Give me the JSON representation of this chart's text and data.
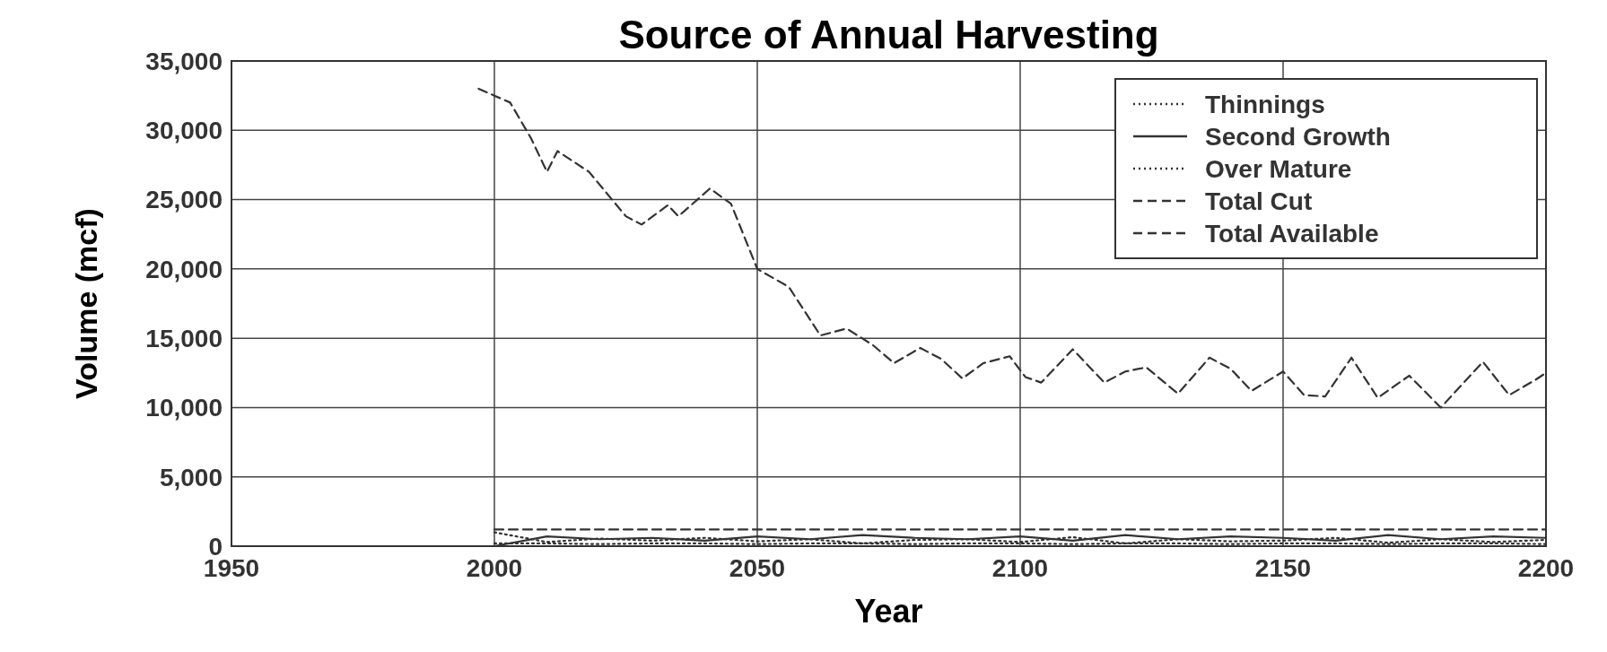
{
  "chart_data": {
    "type": "line",
    "title": "Source of Annual Harvesting",
    "xlabel": "Year",
    "ylabel": "Volume (mcf)",
    "xlim": [
      1950,
      2200
    ],
    "xticks": [
      1950,
      2000,
      2050,
      2100,
      2150,
      2200
    ],
    "ylim": [
      0,
      35000
    ],
    "yticks": [
      0,
      {
        "value": 5000,
        "label": "5,000"
      },
      {
        "value": 10000,
        "label": "10,000"
      },
      {
        "value": 15000,
        "label": "15,000"
      },
      {
        "value": 20000,
        "label": "20,000"
      },
      {
        "value": 25000,
        "label": "25,000"
      },
      {
        "value": 30000,
        "label": "30,000"
      },
      {
        "value": 35000,
        "label": "35,000"
      }
    ],
    "grid": true,
    "legend": "top right",
    "marker": "none",
    "x": [
      2000,
      2010,
      2020,
      2030,
      2040,
      2050,
      2060,
      2070,
      2080,
      2090,
      2100,
      2110,
      2120,
      2130,
      2140,
      2150,
      2160,
      2170,
      2180,
      2190,
      2200
    ],
    "series": [
      {
        "name": "Thinnings",
        "color": "#333333",
        "line_style": "dotted",
        "values": [
          200,
          200,
          150,
          200,
          200,
          150,
          200,
          200,
          150,
          200,
          200,
          150,
          200,
          200,
          150,
          200,
          200,
          150,
          200,
          200,
          150
        ]
      },
      {
        "name": "Second Growth",
        "color": "#333333",
        "line_style": "solid",
        "values": [
          0,
          700,
          500,
          600,
          400,
          700,
          500,
          800,
          600,
          500,
          700,
          400,
          800,
          500,
          700,
          600,
          400,
          800,
          500,
          700,
          600
        ]
      },
      {
        "name": "Over Mature",
        "color": "#333333",
        "line_style": "dotted",
        "values": [
          1000,
          300,
          550,
          400,
          600,
          350,
          500,
          200,
          450,
          500,
          300,
          650,
          200,
          500,
          350,
          400,
          600,
          250,
          500,
          300,
          450
        ]
      },
      {
        "name": "Total Cut",
        "color": "#333333",
        "line_style": "dashed",
        "values": [
          1200,
          1200,
          1200,
          1200,
          1200,
          1200,
          1200,
          1200,
          1200,
          1200,
          1200,
          1200,
          1200,
          1200,
          1200,
          1200,
          1200,
          1200,
          1200,
          1200,
          1200
        ]
      },
      {
        "name": "Total Available",
        "color": "#333333",
        "line_style": "dashed",
        "x": [
          1997,
          2000,
          2003,
          2007,
          2010,
          2012,
          2018,
          2025,
          2028,
          2033,
          2035,
          2041,
          2045,
          2050,
          2056,
          2062,
          2067,
          2072,
          2076,
          2081,
          2085,
          2089,
          2093,
          2098,
          2101,
          2104,
          2110,
          2116,
          2120,
          2124,
          2130,
          2136,
          2140,
          2144,
          2150,
          2154,
          2158,
          2163,
          2168,
          2174,
          2180,
          2188,
          2193,
          2198,
          2200
        ],
        "values": [
          33000,
          32500,
          32000,
          29400,
          27000,
          28500,
          27000,
          23800,
          23200,
          24600,
          23800,
          25800,
          24700,
          20000,
          18700,
          15200,
          15700,
          14500,
          13200,
          14300,
          13500,
          12100,
          13200,
          13700,
          12200,
          11800,
          14200,
          11800,
          12600,
          12900,
          11000,
          13600,
          12800,
          11200,
          12600,
          10900,
          10800,
          13600,
          10700,
          12300,
          10000,
          13300,
          10900,
          12000,
          12500
        ]
      }
    ]
  }
}
